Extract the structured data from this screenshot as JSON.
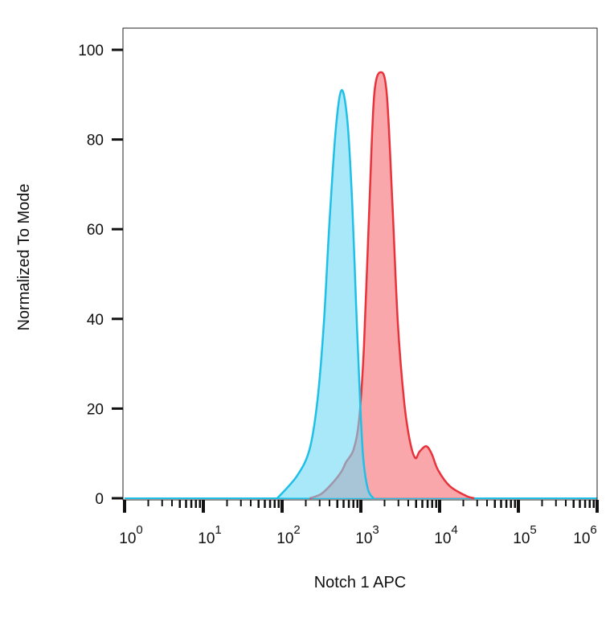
{
  "chart_data": {
    "type": "area",
    "title": "",
    "xlabel": "Notch 1 APC",
    "ylabel": "Normalized To Mode",
    "xscale": "log",
    "xlim": [
      1,
      1000000
    ],
    "ylim": [
      0,
      100
    ],
    "grid": false,
    "x_tick_labels": [
      {
        "base": "10",
        "exp": "0",
        "value": 1
      },
      {
        "base": "10",
        "exp": "1",
        "value": 10
      },
      {
        "base": "10",
        "exp": "2",
        "value": 100
      },
      {
        "base": "10",
        "exp": "3",
        "value": 1000
      },
      {
        "base": "10",
        "exp": "4",
        "value": 10000
      },
      {
        "base": "10",
        "exp": "5",
        "value": 100000
      },
      {
        "base": "10",
        "exp": "6",
        "value": 1000000
      }
    ],
    "y_ticks": [
      0,
      20,
      40,
      60,
      80,
      100
    ],
    "y_tick_labels": [
      "0",
      "20",
      "40",
      "60",
      "80",
      "100"
    ],
    "series": [
      {
        "color": "#e8323c",
        "fill": "#f7898e",
        "x": [
          224,
          316,
          447,
          569,
          646,
          813,
          955,
          1096,
          1288,
          1479,
          1800,
          2138,
          2512,
          2951,
          3548,
          4169,
          4898,
          5560,
          6761,
          7943,
          9550,
          13490,
          21880,
          27540
        ],
        "y": [
          0,
          1,
          3.6,
          6,
          8,
          11,
          18,
          34,
          66,
          90,
          95,
          90,
          66,
          39,
          21.5,
          13,
          9,
          10.4,
          11.6,
          9.9,
          6.3,
          2.7,
          0.5,
          0
        ]
      },
      {
        "color": "#1ec0e8",
        "fill": "#6fd8f5",
        "x": [
          87,
          155,
          224,
          282,
          339,
          398,
          479,
          569,
          676,
          776,
          871,
          977,
          1072,
          1230,
          1445
        ],
        "y": [
          0,
          5,
          11,
          22,
          39,
          61,
          82,
          91,
          84,
          66,
          43,
          22,
          9,
          2,
          0
        ]
      }
    ]
  }
}
